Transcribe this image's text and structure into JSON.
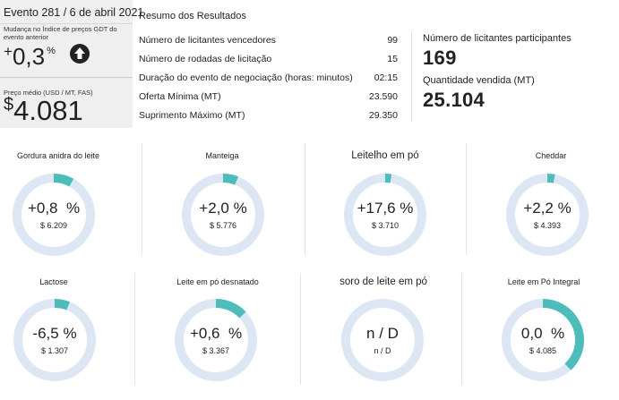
{
  "event": {
    "title": "Evento 281 / 6 de abril 2021",
    "change_caption": "Mudança no Índice de preços GDT do evento anterior",
    "change_sign": "+",
    "change_value": "0,3",
    "change_unit": "%",
    "change_direction_icon": "arrow-up-icon",
    "price_caption": "Preço médio (USD / MT, FAS)",
    "price_currency": "$",
    "price_value": "4.081"
  },
  "summary": {
    "title": "Resumo dos Resultados",
    "rows": [
      {
        "label": "Número de licitantes vencedores",
        "value": "99"
      },
      {
        "label": "Número de rodadas de licitação",
        "value": "15"
      },
      {
        "label": "Duração do evento de negociação (horas: minutos)",
        "value": "02:15"
      },
      {
        "label": "Oferta Mínima (MT)",
        "value": "23.590"
      },
      {
        "label": "Suprimento Máximo (MT)",
        "value": "29.350"
      }
    ],
    "participants_caption": "Número de licitantes participantes",
    "participants_value": "169",
    "quantity_caption": "Quantidade vendida (MT)",
    "quantity_value": "25.104"
  },
  "colors": {
    "accent_teal": "#4fbcbc",
    "ring_track": "#dde6f3",
    "panel_bg": "#efefef",
    "text": "#222222"
  },
  "products": [
    {
      "name": "Gordura anidra do leite",
      "change": "+0,8  %",
      "price": "$ 6.209",
      "change_fraction": 0.08
    },
    {
      "name": "Manteiga",
      "change": "+2,0 %",
      "price": "$ 5.776",
      "change_fraction": 0.06
    },
    {
      "name": "Leitelho em pó",
      "change": "+17,6 %",
      "price": "$ 3.710",
      "change_fraction": 0.025
    },
    {
      "name": "Cheddar",
      "change": "+2,2 %",
      "price": "$ 4.393",
      "change_fraction": 0.03
    },
    {
      "name": "Lactose",
      "change": "-6,5 %",
      "price": "$ 1.307",
      "change_fraction": 0.06
    },
    {
      "name": "Leite em pó desnatado",
      "change": "+0,6  %",
      "price": "$ 3.367",
      "change_fraction": 0.13
    },
    {
      "name": "soro de leite em pó",
      "change": "n / D",
      "price": "n / D",
      "change_fraction": 0
    },
    {
      "name": "Leite em Pó Integral",
      "change": "0,0  %",
      "price": "$ 4.085",
      "change_fraction": 0.38
    }
  ]
}
